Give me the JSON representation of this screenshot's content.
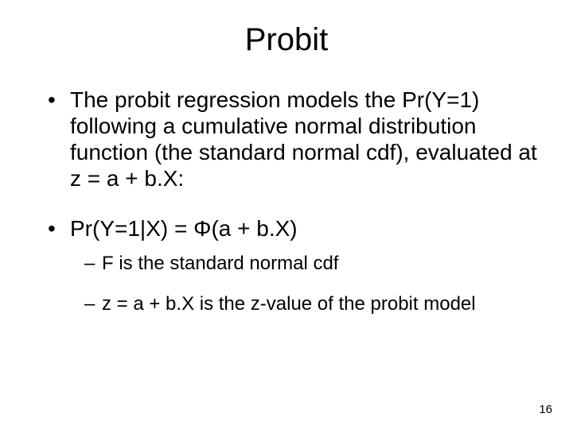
{
  "title": "Probit",
  "bullets": [
    {
      "text": "The probit regression models the Pr(Y=1) following a cumulative normal distribution function (the standard normal cdf), evaluated at z = a + b.X:"
    },
    {
      "text": "Pr(Y=1|X) = Φ(a + b.X)",
      "sub": [
        "F is the standard normal cdf",
        "z = a + b.X is the z-value of the probit model"
      ]
    }
  ],
  "page_number": "16"
}
